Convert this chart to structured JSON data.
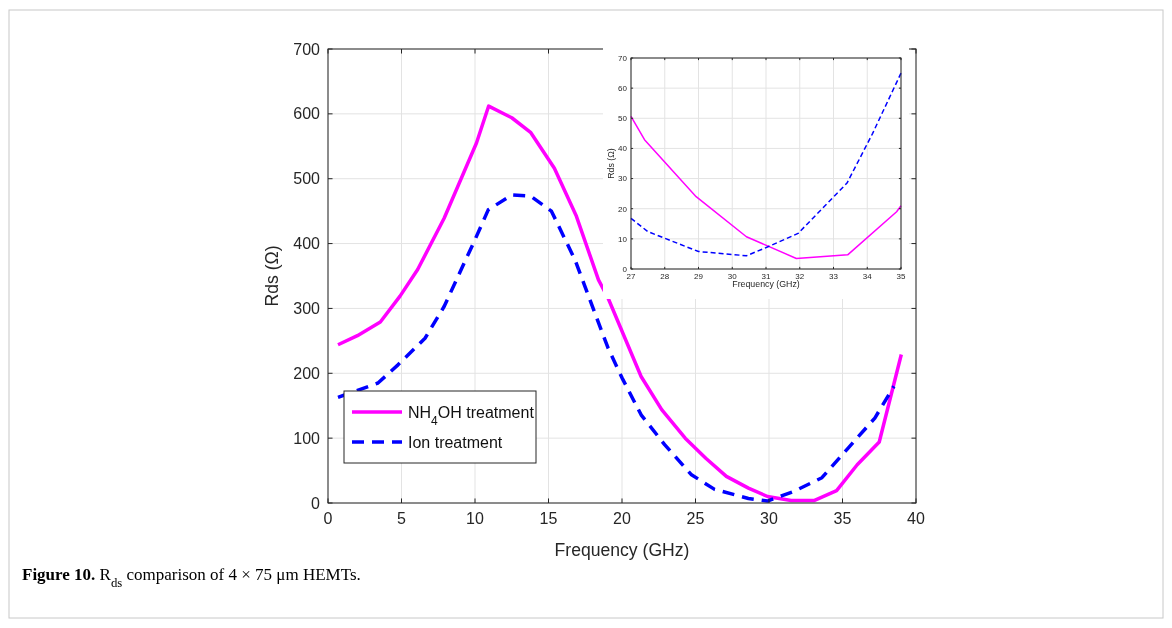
{
  "chart_data": [
    {
      "type": "line",
      "xlabel": "Frequency (GHz)",
      "ylabel": "Rds (Ω)",
      "xlim": [
        0,
        40
      ],
      "xticks": [
        0,
        5,
        10,
        15,
        20,
        25,
        30,
        35,
        40
      ],
      "ylim": [
        0,
        700
      ],
      "yticks": [
        0,
        100,
        200,
        300,
        400,
        500,
        600,
        700
      ],
      "grid": true,
      "legend": "bottom left",
      "annotations": [
        "Figure 10. R$_{ds}$ comparison of 4 × 75 μm HEMTs."
      ],
      "series": [
        {
          "name": "NH$_{4}$OH treatment",
          "color": "#ff00ff",
          "line_style": "solid",
          "x": [
            0.68,
            2.0,
            3.56,
            4.9,
            6.1,
            7.9,
            10.1,
            10.93,
            12.5,
            13.8,
            15.4,
            16.9,
            18.4,
            19.05,
            21.3,
            22.7,
            24.3,
            25.7,
            27.1,
            28.6,
            29.9,
            31.5,
            33.1,
            34.6,
            36.0,
            37.5,
            39.0
          ],
          "values": [
            244,
            258,
            279,
            319,
            360,
            439,
            555,
            612,
            594,
            571,
            516,
            442,
            344,
            316,
            195,
            144,
            100,
            69,
            41,
            23,
            10,
            4,
            4,
            19,
            59,
            94,
            229
          ]
        },
        {
          "name": "Ion treatment",
          "color": "#0000ff",
          "line_style": "dashed",
          "x": [
            0.68,
            3.4,
            4.76,
            6.6,
            7.9,
            10.0,
            10.9,
            12.5,
            13.8,
            15.2,
            16.8,
            18.4,
            19.05,
            20.0,
            21.3,
            22.9,
            24.7,
            26.3,
            28.6,
            29.9,
            31.7,
            33.6,
            35.4,
            37.2,
            38.5
          ],
          "values": [
            163,
            185,
            213,
            254,
            303,
            406,
            452,
            475,
            473,
            450,
            375,
            278,
            239,
            193,
            136,
            90,
            44,
            21,
            7,
            3,
            18,
            39,
            85,
            131,
            180
          ]
        }
      ]
    },
    {
      "type": "line",
      "xlabel": "Frequency (GHz)",
      "ylabel": "Rds (Ω)",
      "xlim": [
        27,
        35
      ],
      "xticks": [
        27,
        28,
        29,
        30,
        31,
        32,
        33,
        34,
        35
      ],
      "ylim": [
        0,
        70
      ],
      "yticks": [
        0,
        10,
        20,
        30,
        40,
        50,
        60,
        70
      ],
      "grid": true,
      "series": [
        {
          "color": "#ff00ff",
          "line_style": "solid",
          "x": [
            27,
            27.4,
            28.93,
            30.42,
            31.9,
            33.42,
            34.87,
            35
          ],
          "values": [
            50.6,
            42.9,
            24.0,
            10.7,
            3.5,
            4.7,
            19,
            21
          ]
        },
        {
          "color": "#0000ff",
          "line_style": "dashed",
          "x": [
            27,
            27.5,
            29,
            30.42,
            30.96,
            31.95,
            33.4,
            34.16,
            35
          ],
          "values": [
            16.8,
            12.4,
            5.8,
            4.4,
            6.9,
            11.8,
            28.5,
            45,
            65
          ]
        }
      ]
    }
  ]
}
